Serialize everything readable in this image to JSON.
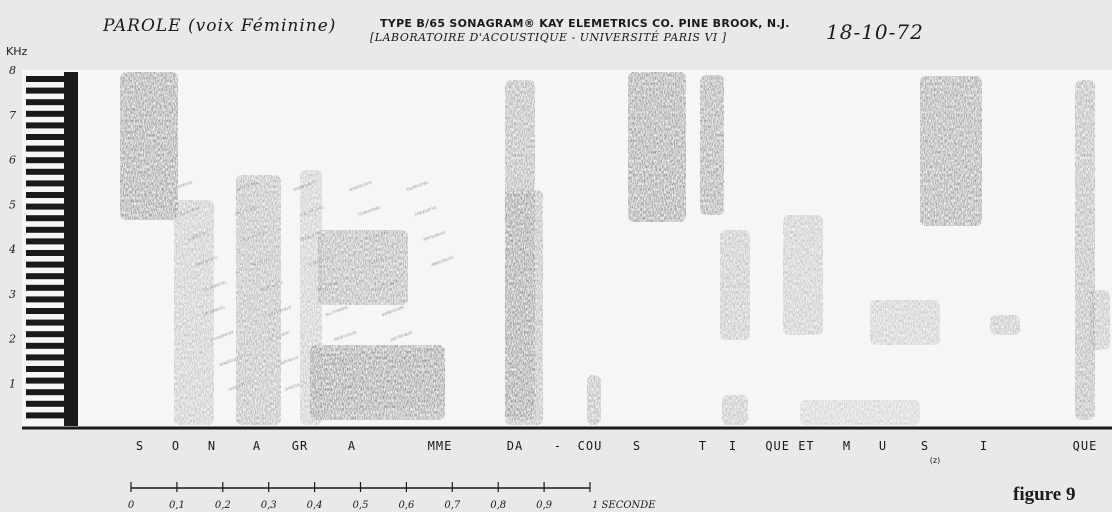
{
  "header": {
    "speech_title": "PAROLE (voix Féminine)",
    "sonagram_type": "TYPE B/65 SONAGRAM® KAY ELEMETRICS CO. PINE BROOK, N.J.",
    "lab": "[LABORATOIRE D'ACOUSTIQUE - UNIVERSITÉ PARIS VI ]",
    "date": "18-10-72"
  },
  "figure_label": "figure 9",
  "chart_data": {
    "type": "heatmap",
    "title": "PAROLE (voix Féminine)",
    "ylabel": "KHz",
    "ylim": [
      0,
      8
    ],
    "y_ticks": [
      "1",
      "2",
      "3",
      "4",
      "5",
      "6",
      "7",
      "8"
    ],
    "xlim": [
      0,
      1
    ],
    "x_ticks": [
      "0",
      "0,1",
      "0,2",
      "0,3",
      "0,4",
      "0,5",
      "0,6",
      "0,7",
      "0,8",
      "0,9"
    ],
    "x_unit_label": "1 SECONDE",
    "phonemes": [
      "S",
      "O",
      "N",
      "A",
      "GR",
      "A",
      "MME",
      "DA",
      "-",
      "COU",
      "S",
      "T",
      "I",
      "QUE ET",
      "M",
      "U",
      "S",
      "I",
      "QUE"
    ],
    "phoneme_note": "(z)",
    "colors": {
      "ink": "#1a1a1a",
      "paper": "#f4f4f4",
      "background": "#e9e9e9"
    }
  }
}
